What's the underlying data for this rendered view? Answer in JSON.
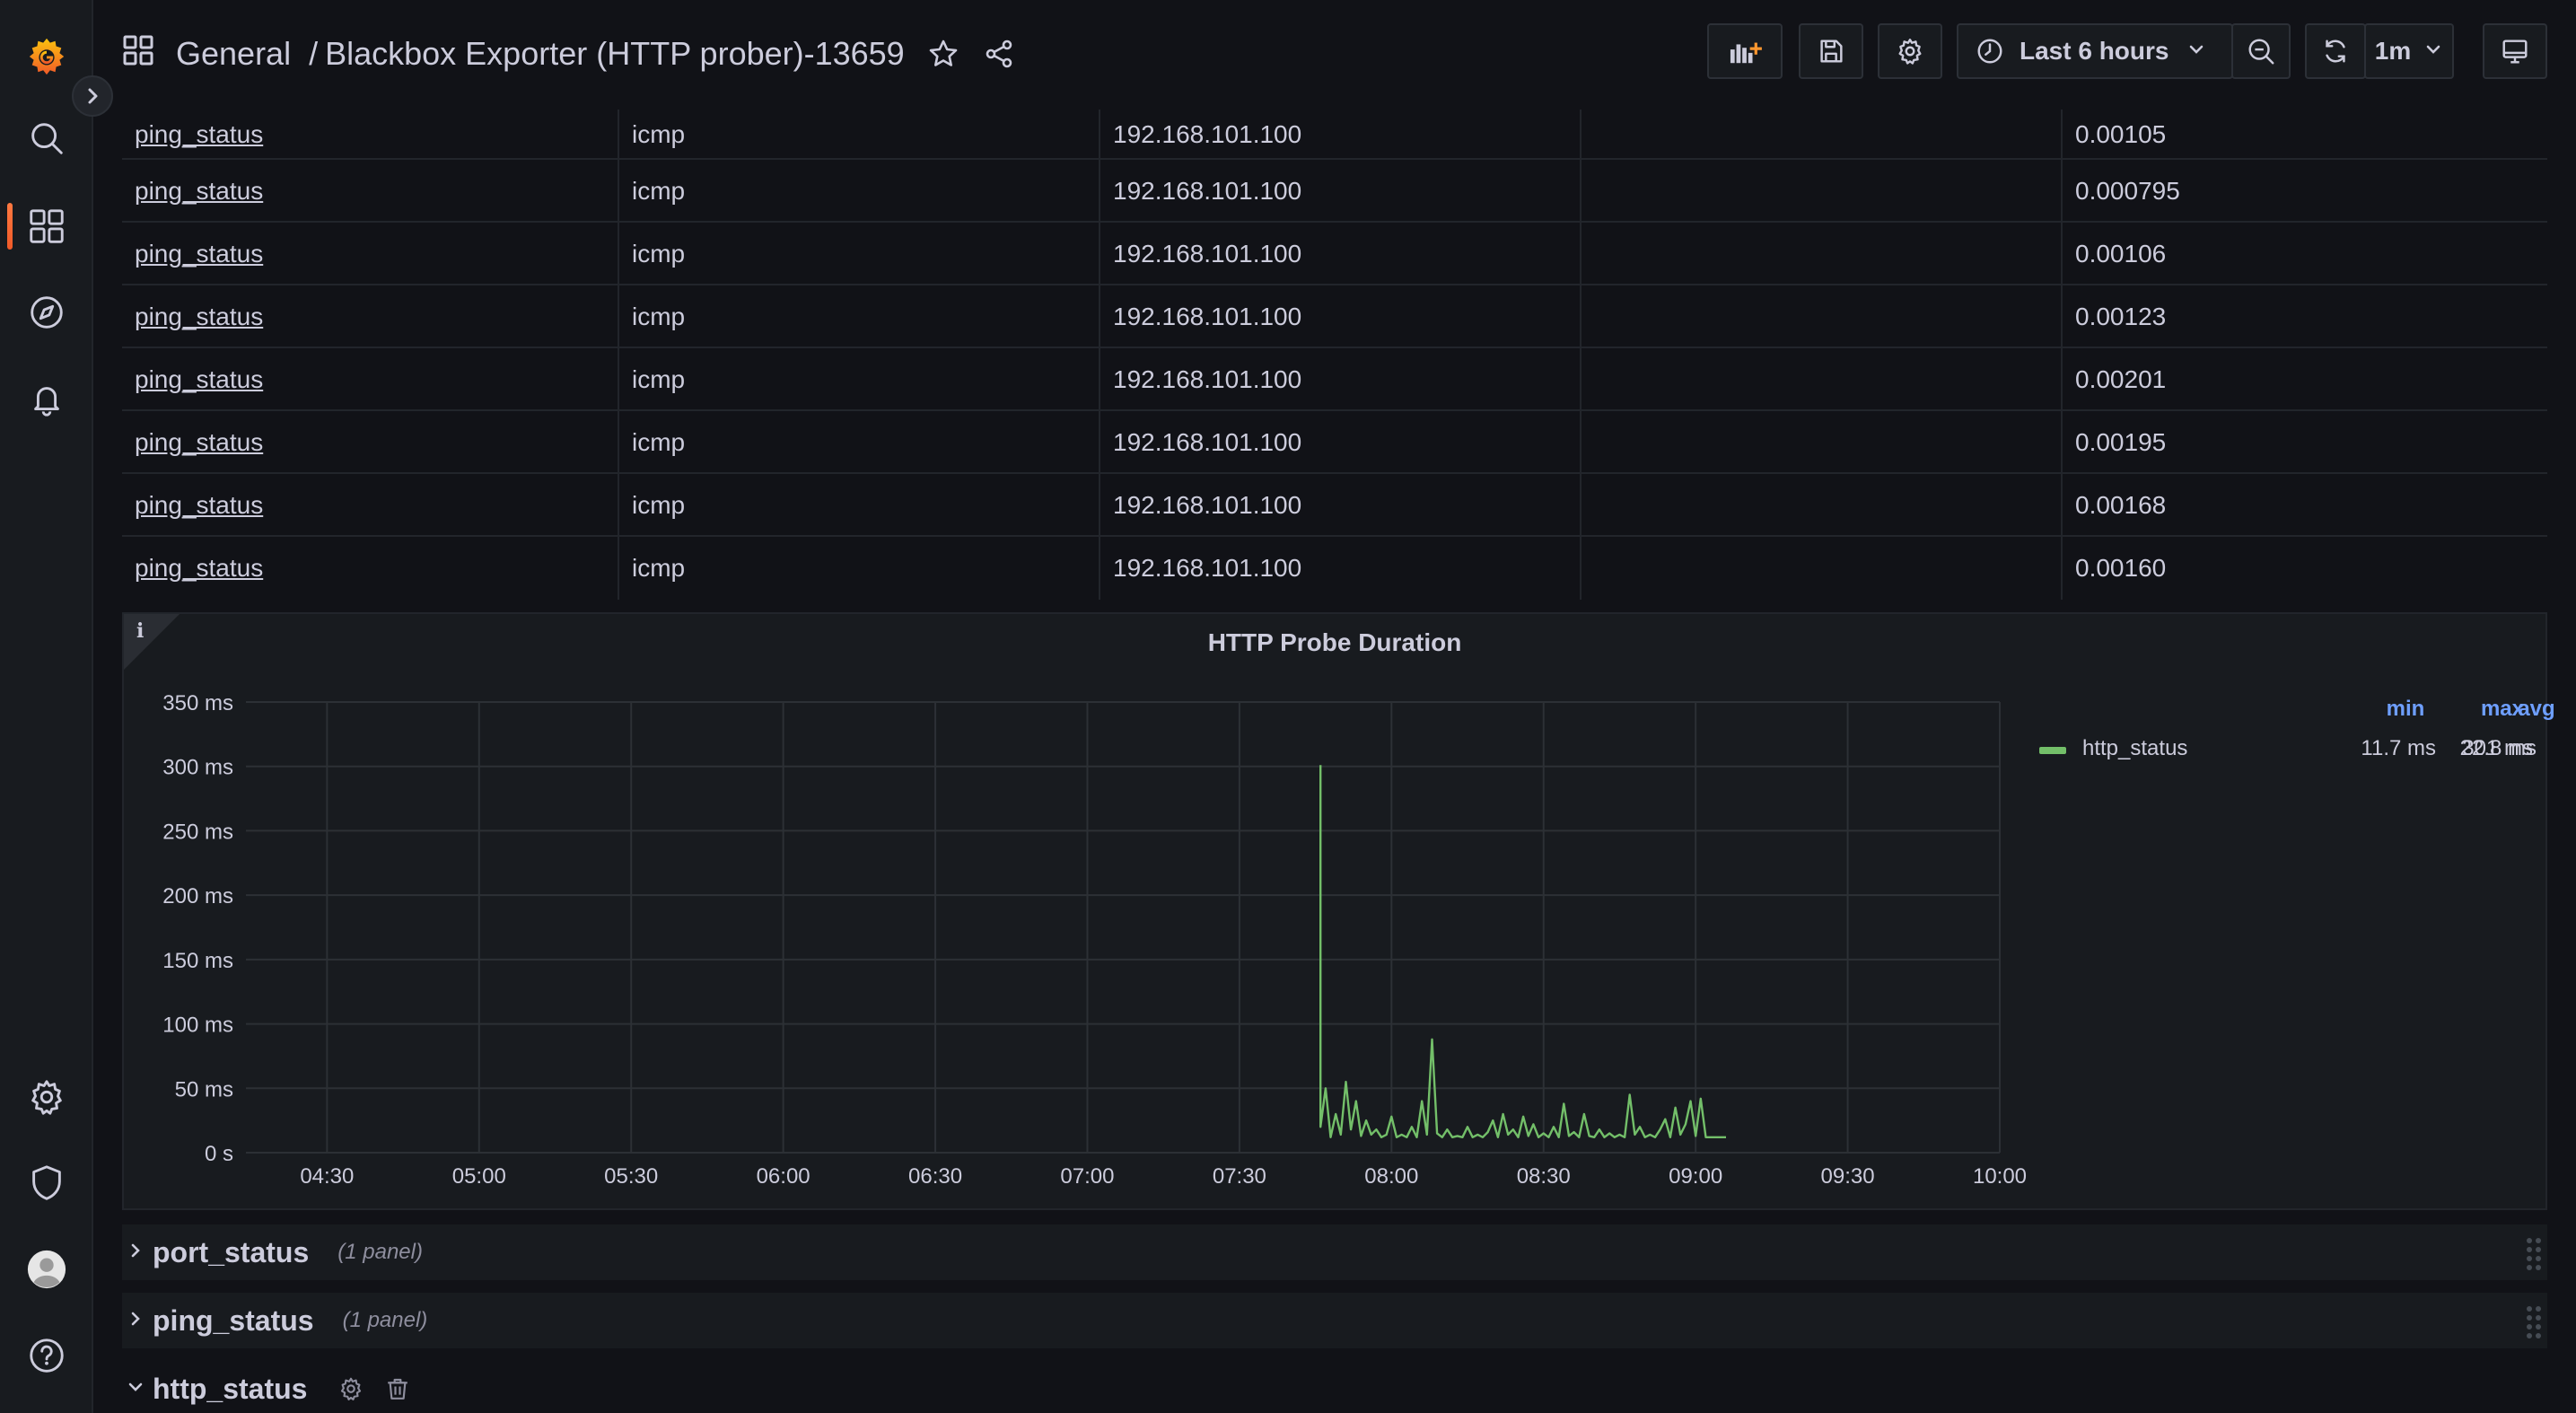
{
  "breadcrumb": {
    "folder": "General",
    "separator": "/",
    "dashboard": "Blackbox Exporter (HTTP prober)-13659"
  },
  "toolbar": {
    "time_range": "Last 6 hours",
    "refresh_interval": "1m"
  },
  "table": {
    "rows": [
      [
        "ping_status",
        "icmp",
        "192.168.101.100",
        "",
        "0.00105"
      ],
      [
        "ping_status",
        "icmp",
        "192.168.101.100",
        "",
        "0.000795"
      ],
      [
        "ping_status",
        "icmp",
        "192.168.101.100",
        "",
        "0.00106"
      ],
      [
        "ping_status",
        "icmp",
        "192.168.101.100",
        "",
        "0.00123"
      ],
      [
        "ping_status",
        "icmp",
        "192.168.101.100",
        "",
        "0.00201"
      ],
      [
        "ping_status",
        "icmp",
        "192.168.101.100",
        "",
        "0.00195"
      ],
      [
        "ping_status",
        "icmp",
        "192.168.101.100",
        "",
        "0.00168"
      ],
      [
        "ping_status",
        "icmp",
        "192.168.101.100",
        "",
        "0.00160"
      ]
    ]
  },
  "panel": {
    "info": "i",
    "title": "HTTP Probe Duration"
  },
  "legend": {
    "headers": [
      "min",
      "max",
      "avg"
    ],
    "series_name": "http_status",
    "min": "11.7 ms",
    "max": "301 ms",
    "avg": "22.8 ms",
    "color": "#73bf69",
    "header_color": "#6e9fff"
  },
  "chart_data": {
    "type": "line",
    "title": "HTTP Probe Duration",
    "xlabel": "",
    "ylabel": "",
    "x_ticks": [
      "04:30",
      "05:00",
      "05:30",
      "06:00",
      "06:30",
      "07:00",
      "07:30",
      "08:00",
      "08:30",
      "09:00",
      "09:30",
      "10:00"
    ],
    "y_ticks": [
      "0 s",
      "50 ms",
      "100 ms",
      "150 ms",
      "200 ms",
      "250 ms",
      "300 ms",
      "350 ms"
    ],
    "ylim": [
      0,
      350
    ],
    "xlim": [
      "04:14",
      "10:00"
    ],
    "grid": true,
    "legend_position": "right",
    "series": [
      {
        "name": "http_status",
        "color": "#73bf69",
        "points": [
          [
            "07:46",
            301
          ],
          [
            "07:46",
            20
          ],
          [
            "07:47",
            50
          ],
          [
            "07:48",
            12
          ],
          [
            "07:49",
            30
          ],
          [
            "07:50",
            14
          ],
          [
            "07:51",
            55
          ],
          [
            "07:52",
            18
          ],
          [
            "07:53",
            40
          ],
          [
            "07:54",
            13
          ],
          [
            "07:55",
            25
          ],
          [
            "07:56",
            14
          ],
          [
            "07:57",
            18
          ],
          [
            "07:58",
            12
          ],
          [
            "07:59",
            14
          ],
          [
            "08:00",
            28
          ],
          [
            "08:01",
            12
          ],
          [
            "08:02",
            14
          ],
          [
            "08:03",
            12
          ],
          [
            "08:04",
            20
          ],
          [
            "08:05",
            12
          ],
          [
            "08:06",
            40
          ],
          [
            "08:07",
            14
          ],
          [
            "08:08",
            88
          ],
          [
            "08:09",
            15
          ],
          [
            "08:10",
            12
          ],
          [
            "08:11",
            18
          ],
          [
            "08:12",
            12
          ],
          [
            "08:13",
            13
          ],
          [
            "08:14",
            12
          ],
          [
            "08:15",
            20
          ],
          [
            "08:16",
            12
          ],
          [
            "08:17",
            14
          ],
          [
            "08:18",
            12
          ],
          [
            "08:19",
            16
          ],
          [
            "08:20",
            25
          ],
          [
            "08:21",
            12
          ],
          [
            "08:22",
            30
          ],
          [
            "08:23",
            14
          ],
          [
            "08:24",
            18
          ],
          [
            "08:25",
            12
          ],
          [
            "08:26",
            28
          ],
          [
            "08:27",
            13
          ],
          [
            "08:28",
            22
          ],
          [
            "08:29",
            12
          ],
          [
            "08:30",
            15
          ],
          [
            "08:31",
            12
          ],
          [
            "08:32",
            20
          ],
          [
            "08:33",
            12
          ],
          [
            "08:34",
            38
          ],
          [
            "08:35",
            13
          ],
          [
            "08:36",
            16
          ],
          [
            "08:37",
            12
          ],
          [
            "08:38",
            30
          ],
          [
            "08:39",
            13
          ],
          [
            "08:40",
            12
          ],
          [
            "08:41",
            18
          ],
          [
            "08:42",
            12
          ],
          [
            "08:43",
            15
          ],
          [
            "08:44",
            12
          ],
          [
            "08:45",
            14
          ],
          [
            "08:46",
            12
          ],
          [
            "08:47",
            45
          ],
          [
            "08:48",
            14
          ],
          [
            "08:49",
            20
          ],
          [
            "08:50",
            12
          ],
          [
            "08:51",
            14
          ],
          [
            "08:52",
            12
          ],
          [
            "08:53",
            18
          ],
          [
            "08:54",
            26
          ],
          [
            "08:55",
            12
          ],
          [
            "08:56",
            35
          ],
          [
            "08:57",
            14
          ],
          [
            "08:58",
            22
          ],
          [
            "08:59",
            40
          ],
          [
            "09:00",
            13
          ],
          [
            "09:01",
            42
          ],
          [
            "09:02",
            12
          ],
          [
            "09:03",
            12
          ],
          [
            "09:04",
            12
          ],
          [
            "09:05",
            12
          ],
          [
            "09:06",
            12
          ]
        ]
      }
    ]
  },
  "rows": {
    "port_status": {
      "title": "port_status",
      "count": "(1 panel)"
    },
    "ping_status": {
      "title": "ping_status",
      "count": "(1 panel)"
    },
    "http_status": {
      "title": "http_status"
    }
  },
  "colors": {
    "accent": "#f05a28",
    "background": "#111217",
    "panel": "#181b1f",
    "border": "#22252b",
    "text": "#ccccdc"
  }
}
